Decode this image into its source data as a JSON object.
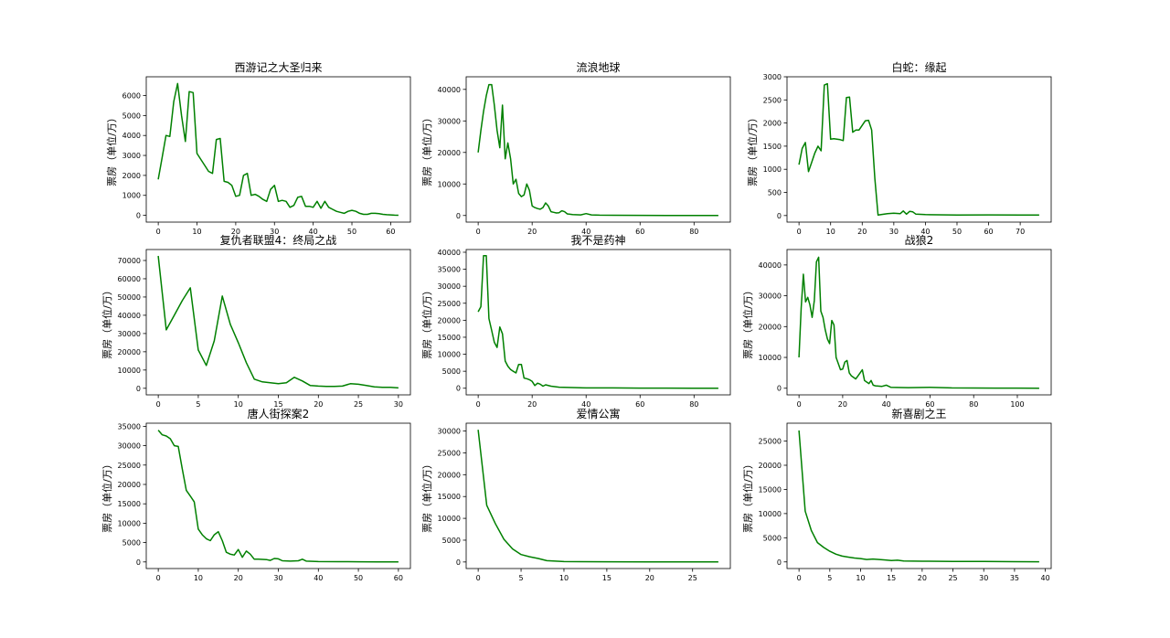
{
  "chart_data": [
    {
      "type": "line",
      "title": "西游记之大圣归来",
      "ylabel": "票房（单位/万）",
      "color": "#008000",
      "xlim": [
        -3.1,
        65.1
      ],
      "xticks": [
        0,
        10,
        20,
        30,
        40,
        50,
        60
      ],
      "ylim": [
        -340,
        6940
      ],
      "yticks": [
        0,
        1000,
        2000,
        3000,
        4000,
        5000,
        6000
      ],
      "x": [
        0,
        1,
        2,
        3,
        4,
        5,
        6,
        7,
        8,
        9,
        10,
        11,
        12,
        13,
        14,
        15,
        16,
        17,
        18,
        19,
        20,
        21,
        22,
        23,
        24,
        25,
        26,
        27,
        28,
        29,
        30,
        31,
        32,
        33,
        34,
        35,
        36,
        37,
        38,
        39,
        40,
        41,
        42,
        43,
        44,
        45,
        46,
        47,
        48,
        49,
        50,
        51,
        52,
        53,
        54,
        55,
        56,
        57,
        58,
        59,
        60,
        61,
        62
      ],
      "values": [
        1800,
        2900,
        4000,
        3950,
        5700,
        6600,
        5000,
        3700,
        6200,
        6150,
        3100,
        2800,
        2500,
        2200,
        2100,
        3800,
        3850,
        1700,
        1650,
        1500,
        950,
        1000,
        2000,
        2100,
        1000,
        1050,
        950,
        800,
        700,
        1300,
        1500,
        700,
        750,
        700,
        400,
        500,
        900,
        950,
        450,
        450,
        400,
        700,
        350,
        700,
        400,
        300,
        200,
        150,
        100,
        200,
        250,
        200,
        100,
        50,
        50,
        100,
        100,
        80,
        50,
        30,
        20,
        10,
        5
      ]
    },
    {
      "type": "line",
      "title": "流浪地球",
      "ylabel": "票房（单位/万）",
      "color": "#008000",
      "xlim": [
        -4.45,
        93.45
      ],
      "xticks": [
        0,
        20,
        40,
        60,
        80
      ],
      "ylim": [
        -2100,
        44000
      ],
      "yticks": [
        0,
        10000,
        20000,
        30000,
        40000
      ],
      "x": [
        0,
        1,
        2,
        3,
        4,
        5,
        6,
        7,
        8,
        9,
        10,
        11,
        12,
        13,
        14,
        15,
        16,
        17,
        18,
        19,
        20,
        21,
        22,
        23,
        24,
        25,
        26,
        27,
        28,
        29,
        30,
        31,
        32,
        33,
        35,
        38,
        40,
        42,
        45,
        50,
        60,
        70,
        80,
        89
      ],
      "values": [
        20000,
        27000,
        33000,
        38000,
        41500,
        41500,
        35000,
        27000,
        21500,
        35000,
        18000,
        23000,
        18000,
        10000,
        11500,
        7000,
        6000,
        6500,
        10000,
        8000,
        3000,
        2500,
        2200,
        2000,
        2500,
        4000,
        3000,
        1200,
        1000,
        800,
        900,
        1500,
        1200,
        500,
        300,
        200,
        600,
        200,
        100,
        80,
        50,
        30,
        20,
        10
      ]
    },
    {
      "type": "line",
      "title": "白蛇：缘起",
      "ylabel": "票房（单位/万）",
      "color": "#008000",
      "xlim": [
        -3.8,
        79.8
      ],
      "xticks": [
        0,
        10,
        20,
        30,
        40,
        50,
        60,
        70
      ],
      "ylim": [
        -142,
        3000
      ],
      "yticks": [
        0,
        500,
        1000,
        1500,
        2000,
        2500,
        3000
      ],
      "x": [
        0,
        1,
        2,
        3,
        4,
        5,
        6,
        7,
        8,
        9,
        10,
        11,
        12,
        13,
        14,
        15,
        16,
        17,
        18,
        19,
        20,
        21,
        22,
        23,
        24,
        25,
        26,
        28,
        30,
        32,
        33,
        34,
        35,
        36,
        37,
        40,
        50,
        60,
        70,
        76
      ],
      "values": [
        1100,
        1450,
        1580,
        950,
        1150,
        1350,
        1500,
        1400,
        2820,
        2850,
        1650,
        1660,
        1650,
        1640,
        1620,
        2550,
        2560,
        1800,
        1850,
        1850,
        1950,
        2050,
        2060,
        1850,
        800,
        10,
        20,
        40,
        50,
        40,
        100,
        30,
        90,
        80,
        30,
        20,
        10,
        15,
        10,
        10
      ]
    },
    {
      "type": "line",
      "title": "复仇者联盟4：终局之战",
      "ylabel": "票房（单位/万）",
      "color": "#008000",
      "xlim": [
        -1.5,
        31.5
      ],
      "xticks": [
        0,
        5,
        10,
        15,
        20,
        25,
        30
      ],
      "ylim": [
        -3600,
        76000
      ],
      "yticks": [
        0,
        10000,
        20000,
        30000,
        40000,
        50000,
        60000,
        70000
      ],
      "x": [
        0,
        1,
        2,
        3,
        4,
        5,
        6,
        7,
        8,
        9,
        10,
        11,
        12,
        13,
        14,
        15,
        16,
        17,
        18,
        19,
        20,
        21,
        22,
        23,
        24,
        25,
        26,
        27,
        28,
        29,
        30
      ],
      "values": [
        72500,
        32000,
        40000,
        48000,
        55000,
        21000,
        12500,
        26000,
        50500,
        35000,
        25000,
        14000,
        5000,
        3500,
        3000,
        2500,
        3000,
        6000,
        4000,
        1500,
        1200,
        1000,
        1000,
        1200,
        2500,
        2200,
        1500,
        800,
        500,
        500,
        200
      ]
    },
    {
      "type": "line",
      "title": "我不是药神",
      "ylabel": "票房（单位/万）",
      "color": "#008000",
      "xlim": [
        -4.45,
        93.45
      ],
      "xticks": [
        0,
        20,
        40,
        60,
        80
      ],
      "ylim": [
        -1950,
        40800
      ],
      "yticks": [
        0,
        5000,
        10000,
        15000,
        20000,
        25000,
        30000,
        35000,
        40000
      ],
      "x": [
        0,
        1,
        2,
        3,
        4,
        5,
        6,
        7,
        8,
        9,
        10,
        11,
        12,
        13,
        14,
        15,
        16,
        17,
        18,
        19,
        20,
        21,
        22,
        23,
        24,
        25,
        27,
        30,
        35,
        40,
        50,
        60,
        70,
        80,
        89
      ],
      "values": [
        22500,
        24000,
        39000,
        39000,
        20500,
        17000,
        13500,
        12000,
        18000,
        16000,
        8000,
        6500,
        5500,
        5000,
        4500,
        7000,
        7000,
        3000,
        2800,
        2500,
        2000,
        800,
        1500,
        1200,
        600,
        1000,
        600,
        300,
        200,
        100,
        80,
        50,
        30,
        20,
        10
      ]
    },
    {
      "type": "line",
      "title": "战狼2",
      "ylabel": "票房（单位/万）",
      "color": "#008000",
      "xlim": [
        -5.5,
        115.5
      ],
      "xticks": [
        0,
        20,
        40,
        60,
        80,
        100
      ],
      "ylim": [
        -2150,
        45000
      ],
      "yticks": [
        0,
        10000,
        20000,
        30000,
        40000
      ],
      "x": [
        0,
        1,
        2,
        3,
        4,
        5,
        6,
        7,
        8,
        9,
        10,
        11,
        12,
        13,
        14,
        15,
        16,
        17,
        18,
        19,
        20,
        21,
        22,
        23,
        24,
        25,
        26,
        27,
        28,
        29,
        30,
        31,
        32,
        33,
        34,
        35,
        38,
        40,
        42,
        50,
        60,
        70,
        80,
        90,
        100,
        110
      ],
      "values": [
        10000,
        26000,
        37000,
        28000,
        29500,
        27000,
        23000,
        28500,
        41000,
        42500,
        25000,
        23000,
        19000,
        16000,
        14500,
        22000,
        20500,
        10000,
        8000,
        6000,
        6200,
        8500,
        9000,
        5000,
        4000,
        3500,
        3000,
        4000,
        5000,
        6000,
        2500,
        2000,
        1500,
        2500,
        1000,
        800,
        600,
        1000,
        300,
        200,
        300,
        100,
        80,
        50,
        30,
        20
      ]
    },
    {
      "type": "line",
      "title": "唐人街探案2",
      "ylabel": "票房（单位/万）",
      "color": "#008000",
      "xlim": [
        -3,
        63
      ],
      "xticks": [
        0,
        10,
        20,
        30,
        40,
        50,
        60
      ],
      "ylim": [
        -1700,
        35800
      ],
      "yticks": [
        0,
        5000,
        10000,
        15000,
        20000,
        25000,
        30000,
        35000
      ],
      "x": [
        0,
        1,
        2,
        3,
        4,
        5,
        6,
        7,
        8,
        9,
        10,
        11,
        12,
        13,
        14,
        15,
        16,
        17,
        18,
        19,
        20,
        21,
        22,
        23,
        24,
        25,
        27,
        28,
        29,
        30,
        31,
        33,
        35,
        36,
        37,
        40,
        45,
        50,
        55,
        60
      ],
      "values": [
        34000,
        32800,
        32500,
        31800,
        30000,
        29800,
        24000,
        18500,
        17000,
        15500,
        8500,
        7000,
        6000,
        5500,
        7000,
        7800,
        5500,
        2500,
        2000,
        1800,
        3200,
        1200,
        2800,
        2000,
        700,
        700,
        600,
        400,
        900,
        800,
        300,
        200,
        300,
        700,
        200,
        100,
        80,
        50,
        30,
        10
      ]
    },
    {
      "type": "line",
      "title": "爱情公寓",
      "ylabel": "票房（单位/万）",
      "color": "#008000",
      "xlim": [
        -1.4,
        29.4
      ],
      "xticks": [
        0,
        5,
        10,
        15,
        20,
        25
      ],
      "ylim": [
        -1500,
        31800
      ],
      "yticks": [
        0,
        5000,
        10000,
        15000,
        20000,
        25000,
        30000
      ],
      "x": [
        0,
        1,
        2,
        3,
        4,
        5,
        6,
        7,
        8,
        9,
        10,
        15,
        20,
        28
      ],
      "values": [
        30300,
        13000,
        8800,
        5200,
        3000,
        1700,
        1200,
        800,
        300,
        200,
        100,
        50,
        30,
        10
      ]
    },
    {
      "type": "line",
      "title": "新喜剧之王",
      "ylabel": "票房（单位/万）",
      "color": "#008000",
      "xlim": [
        -1.95,
        40.95
      ],
      "xticks": [
        0,
        5,
        10,
        15,
        20,
        25,
        30,
        35,
        40
      ],
      "ylim": [
        -1370,
        28700
      ],
      "yticks": [
        0,
        5000,
        10000,
        15000,
        20000,
        25000
      ],
      "x": [
        0,
        1,
        2,
        3,
        4,
        5,
        6,
        7,
        8,
        9,
        10,
        11,
        12,
        13,
        14,
        15,
        16,
        17,
        20,
        25,
        30,
        35,
        39
      ],
      "values": [
        27200,
        10500,
        6500,
        4000,
        3000,
        2200,
        1600,
        1200,
        1000,
        800,
        700,
        500,
        600,
        500,
        400,
        300,
        350,
        200,
        150,
        100,
        80,
        50,
        30
      ]
    }
  ]
}
